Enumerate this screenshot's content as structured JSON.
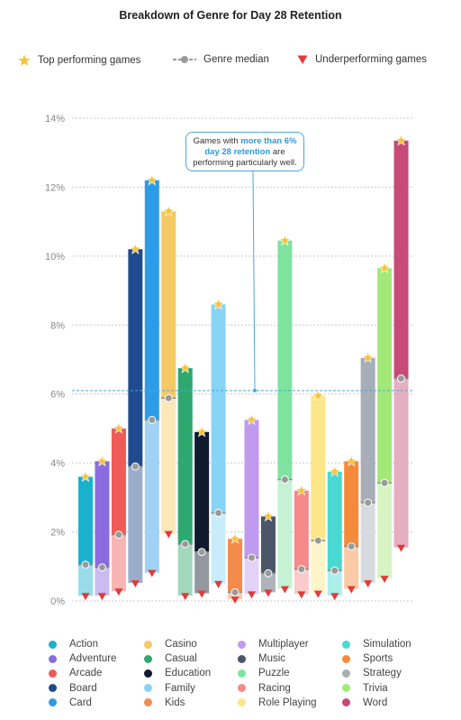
{
  "chart_data": {
    "type": "bar",
    "title": "Breakdown of Genre for Day 28 Retention",
    "ylim": [
      0,
      14
    ],
    "yticks": [
      0,
      2,
      4,
      6,
      8,
      10,
      12,
      14
    ],
    "ytick_labels": [
      "0%",
      "2%",
      "4%",
      "6%",
      "8%",
      "10%",
      "12%",
      "14%"
    ],
    "grid": true,
    "legend_top": [
      {
        "marker": "star",
        "label": "Top performing games",
        "color": "#f5c33b"
      },
      {
        "marker": "median-line",
        "label": "Genre median",
        "color": "#9a9a9a"
      },
      {
        "marker": "triangle",
        "label": "Underperforming games",
        "color": "#e23a3a"
      }
    ],
    "reference_line": {
      "value": 6.1,
      "color": "#4aa8e0"
    },
    "annotation": {
      "pre": "Games with ",
      "highlight": "more than 6% day 28 retention",
      "post": " are performing particularly well."
    },
    "series": [
      {
        "name": "Action",
        "color": "#1ab1cf",
        "top": 3.6,
        "bottom": 0.15,
        "median": 1.05
      },
      {
        "name": "Adventure",
        "color": "#8a6be0",
        "top": 4.05,
        "bottom": 0.15,
        "median": 0.97
      },
      {
        "name": "Arcade",
        "color": "#ef5b56",
        "top": 5.0,
        "bottom": 0.28,
        "median": 1.92
      },
      {
        "name": "Board",
        "color": "#1f4b8e",
        "top": 10.2,
        "bottom": 0.52,
        "median": 3.9
      },
      {
        "name": "Card",
        "color": "#2c9ce8",
        "top": 12.2,
        "bottom": 0.82,
        "median": 5.25
      },
      {
        "name": "Casino",
        "color": "#f5c964",
        "top": 11.3,
        "bottom": 1.95,
        "median": 5.88
      },
      {
        "name": "Casual",
        "color": "#2ea86e",
        "top": 6.75,
        "bottom": 0.15,
        "median": 1.65
      },
      {
        "name": "Education",
        "color": "#0e1a2e",
        "top": 4.9,
        "bottom": 0.22,
        "median": 1.42
      },
      {
        "name": "Family",
        "color": "#88d4f5",
        "top": 8.6,
        "bottom": 0.5,
        "median": 2.55
      },
      {
        "name": "Kids",
        "color": "#f38b4d",
        "top": 1.8,
        "bottom": 0.05,
        "median": 0.25
      },
      {
        "name": "Multiplayer",
        "color": "#c09af0",
        "top": 5.25,
        "bottom": 0.2,
        "median": 1.25
      },
      {
        "name": "Music",
        "color": "#4b5668",
        "top": 2.45,
        "bottom": 0.25,
        "median": 0.8
      },
      {
        "name": "Puzzle",
        "color": "#7fe3a0",
        "top": 10.45,
        "bottom": 0.35,
        "median": 3.52
      },
      {
        "name": "Racing",
        "color": "#f58a8a",
        "top": 3.2,
        "bottom": 0.2,
        "median": 0.92
      },
      {
        "name": "Role Playing",
        "color": "#fbe68a",
        "top": 5.95,
        "bottom": 0.22,
        "median": 1.75
      },
      {
        "name": "Simulation",
        "color": "#4ad9d2",
        "top": 3.75,
        "bottom": 0.15,
        "median": 0.88
      },
      {
        "name": "Sports",
        "color": "#f58a3a",
        "top": 4.05,
        "bottom": 0.35,
        "median": 1.58
      },
      {
        "name": "Strategy",
        "color": "#a7aeb8",
        "top": 7.05,
        "bottom": 0.52,
        "median": 2.85
      },
      {
        "name": "Trivia",
        "color": "#a3e978",
        "top": 9.65,
        "bottom": 0.65,
        "median": 3.42
      },
      {
        "name": "Word",
        "color": "#c84a76",
        "top": 13.35,
        "bottom": 1.55,
        "median": 6.45
      }
    ]
  }
}
